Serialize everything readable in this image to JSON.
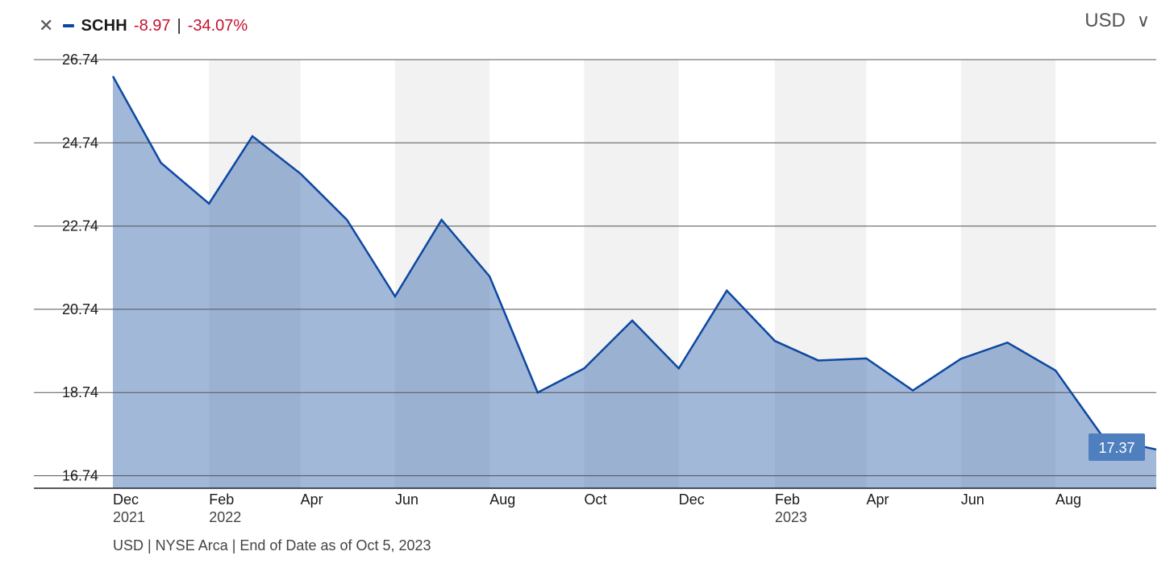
{
  "header": {
    "close_icon": "close-icon",
    "ticker": "SCHH",
    "change_abs": "-8.97",
    "separator": "|",
    "change_pct": "-34.07%",
    "series_color": "#0d47a1",
    "negative_color": "#c8102e"
  },
  "currency_selector": {
    "value": "USD",
    "icon": "chevron-down-icon"
  },
  "footer": {
    "note": "USD | NYSE Arca | End of Date as of Oct 5, 2023"
  },
  "chart_data": {
    "type": "area",
    "title": "",
    "xlabel": "",
    "ylabel": "",
    "ylim": [
      16.44,
      26.74
    ],
    "y_ticks": [
      16.74,
      18.74,
      20.74,
      22.74,
      24.74,
      26.74
    ],
    "y_tick_labels": [
      "16.74",
      "18.74",
      "20.74",
      "22.74",
      "24.74",
      "26.74"
    ],
    "x_start": "2021-12-01",
    "x_end": "2023-10-05",
    "x_ticks": [
      {
        "date": "2021-12-01",
        "label": "Dec",
        "sublabel": "2021"
      },
      {
        "date": "2022-02-01",
        "label": "Feb",
        "sublabel": "2022"
      },
      {
        "date": "2022-04-01",
        "label": "Apr",
        "sublabel": ""
      },
      {
        "date": "2022-06-01",
        "label": "Jun",
        "sublabel": ""
      },
      {
        "date": "2022-08-01",
        "label": "Aug",
        "sublabel": ""
      },
      {
        "date": "2022-10-01",
        "label": "Oct",
        "sublabel": ""
      },
      {
        "date": "2022-12-01",
        "label": "Dec",
        "sublabel": ""
      },
      {
        "date": "2023-02-01",
        "label": "Feb",
        "sublabel": "2023"
      },
      {
        "date": "2023-04-01",
        "label": "Apr",
        "sublabel": ""
      },
      {
        "date": "2023-06-01",
        "label": "Jun",
        "sublabel": ""
      },
      {
        "date": "2023-08-01",
        "label": "Aug",
        "sublabel": ""
      }
    ],
    "shaded_bands": [
      [
        "2022-02-01",
        "2022-04-01"
      ],
      [
        "2022-06-01",
        "2022-08-01"
      ],
      [
        "2022-10-01",
        "2022-12-01"
      ],
      [
        "2023-02-01",
        "2023-04-01"
      ],
      [
        "2023-06-01",
        "2023-08-01"
      ]
    ],
    "series": [
      {
        "name": "SCHH",
        "color": "#0d47a1",
        "fill": "#a3bbdc",
        "points": [
          {
            "x": "2021-12-01",
            "y": 26.34
          },
          {
            "x": "2022-01-01",
            "y": 24.26
          },
          {
            "x": "2022-02-01",
            "y": 23.28
          },
          {
            "x": "2022-03-01",
            "y": 24.9
          },
          {
            "x": "2022-04-01",
            "y": 24.0
          },
          {
            "x": "2022-05-01",
            "y": 22.89
          },
          {
            "x": "2022-06-01",
            "y": 21.05
          },
          {
            "x": "2022-07-01",
            "y": 22.89
          },
          {
            "x": "2022-08-01",
            "y": 21.53
          },
          {
            "x": "2022-09-01",
            "y": 18.74
          },
          {
            "x": "2022-10-01",
            "y": 19.32
          },
          {
            "x": "2022-11-01",
            "y": 20.47
          },
          {
            "x": "2022-12-01",
            "y": 19.32
          },
          {
            "x": "2023-01-01",
            "y": 21.19
          },
          {
            "x": "2023-02-01",
            "y": 19.98
          },
          {
            "x": "2023-03-01",
            "y": 19.51
          },
          {
            "x": "2023-04-01",
            "y": 19.56
          },
          {
            "x": "2023-05-01",
            "y": 18.79
          },
          {
            "x": "2023-06-01",
            "y": 19.55
          },
          {
            "x": "2023-07-01",
            "y": 19.94
          },
          {
            "x": "2023-08-01",
            "y": 19.27
          },
          {
            "x": "2023-09-01",
            "y": 17.65
          },
          {
            "x": "2023-10-05",
            "y": 17.37
          }
        ]
      }
    ],
    "last_value_label": "17.37",
    "grid": true,
    "legend": "top-left"
  }
}
